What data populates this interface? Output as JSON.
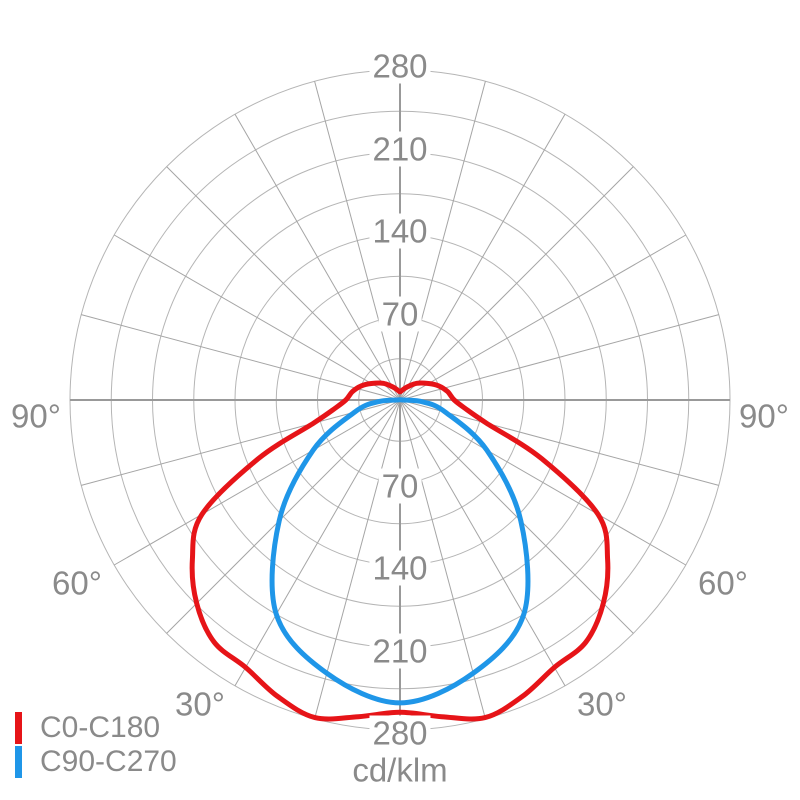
{
  "chart_data": {
    "type": "line",
    "subtype": "polar_photometric_distribution",
    "units_label": "cd/klm",
    "angle_axis": {
      "zero_direction": "bottom (nadir)",
      "grid_step_deg": 15,
      "labeled_angles_deg": [
        30,
        60,
        90
      ],
      "labels_shown": [
        "30°",
        "60°",
        "90°"
      ]
    },
    "radial_axis": {
      "tick_labels": [
        70,
        140,
        210,
        280
      ],
      "ring_step": 35,
      "max": 280,
      "grid": true
    },
    "legend_position": "bottom-left",
    "series": [
      {
        "name": "C0-C180",
        "color": "#e61418",
        "symmetric": true,
        "gamma_deg": [
          0,
          7.5,
          15,
          22.5,
          30,
          37.5,
          45,
          52.5,
          60,
          67.5,
          75,
          82.5,
          90,
          100,
          110,
          120,
          135,
          150,
          165,
          180
        ],
        "cd_per_klm": [
          265,
          271,
          279,
          272,
          262,
          259,
          244,
          222,
          194,
          130,
          76,
          56,
          46,
          41,
          35,
          28,
          20,
          13,
          9,
          7
        ]
      },
      {
        "name": "C90-C270",
        "color": "#1f96e8",
        "symmetric": true,
        "gamma_deg": [
          0,
          15,
          30,
          45,
          60,
          75,
          85,
          90
        ],
        "cd_per_klm": [
          257,
          240,
          210,
          145,
          85,
          40,
          20,
          3
        ]
      }
    ]
  },
  "legend": {
    "items": [
      {
        "label": "C0-C180",
        "color": "#e61418"
      },
      {
        "label": "C90-C270",
        "color": "#1f96e8"
      }
    ]
  },
  "labels": {
    "unit": "cd/klm",
    "angle": [
      "90°",
      "60°",
      "30°"
    ],
    "radial_top": [
      "280",
      "210",
      "140",
      "70"
    ],
    "radial_bottom": [
      "70",
      "140",
      "210",
      "280"
    ]
  },
  "colors": {
    "background": "#ffffff",
    "text": "#8a8a8a",
    "ring": "#b5b5b5",
    "spoke": "#a5a5a5",
    "axis": "#999999"
  }
}
